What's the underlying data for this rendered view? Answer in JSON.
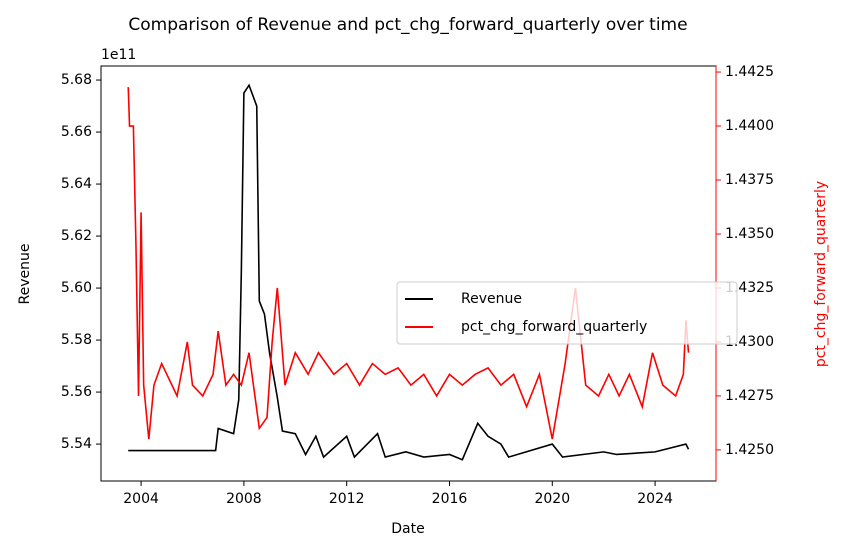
{
  "chart_data": {
    "type": "line",
    "title": "Comparison of Revenue and pct_chg_forward_quarterly over time",
    "xlabel": "Date",
    "ylabel": "Revenue",
    "y2label": "pct_chg_forward_quarterly",
    "y_offset_label": "1e11",
    "xlim": [
      2002.44,
      2026.37
    ],
    "xticks": [
      2004,
      2008,
      2012,
      2016,
      2020,
      2024
    ],
    "ylim": [
      552580000000.0,
      568540000000.0
    ],
    "yticks": [
      {
        "value": 554000000000.0,
        "label": "5.54"
      },
      {
        "value": 556000000000.0,
        "label": "5.56"
      },
      {
        "value": 558000000000.0,
        "label": "5.58"
      },
      {
        "value": 560000000000.0,
        "label": "5.60"
      },
      {
        "value": 562000000000.0,
        "label": "5.62"
      },
      {
        "value": 564000000000.0,
        "label": "5.64"
      },
      {
        "value": 566000000000.0,
        "label": "5.66"
      },
      {
        "value": 568000000000.0,
        "label": "5.68"
      }
    ],
    "y2lim": [
      1.42356,
      1.44278
    ],
    "y2ticks": [
      {
        "value": 1.425,
        "label": "1.4250"
      },
      {
        "value": 1.4275,
        "label": "1.4275"
      },
      {
        "value": 1.43,
        "label": "1.4300"
      },
      {
        "value": 1.4325,
        "label": "1.4325"
      },
      {
        "value": 1.435,
        "label": "1.4350"
      },
      {
        "value": 1.4375,
        "label": "1.4375"
      },
      {
        "value": 1.44,
        "label": "1.4400"
      },
      {
        "value": 1.4425,
        "label": "1.4425"
      }
    ],
    "legend": "center right",
    "series": [
      {
        "name": "Revenue",
        "color": "#000000",
        "axis": "y",
        "x": [
          2003.5,
          2006.9,
          2007.0,
          2007.6,
          2007.8,
          2007.9,
          2008.0,
          2008.2,
          2008.5,
          2008.6,
          2008.8,
          2009.0,
          2009.3,
          2009.5,
          2010.0,
          2010.4,
          2010.8,
          2011.1,
          2012.0,
          2012.3,
          2013.2,
          2013.5,
          2014.3,
          2015.0,
          2016.0,
          2016.5,
          2017.1,
          2017.5,
          2018.0,
          2018.3,
          2020.0,
          2020.4,
          2022.0,
          2022.5,
          2024.0,
          2025.2,
          2025.3
        ],
        "values": [
          553750000000.0,
          553750000000.0,
          554600000000.0,
          554400000000.0,
          555700000000.0,
          560600000000.0,
          567500000000.0,
          567800000000.0,
          567000000000.0,
          559500000000.0,
          559000000000.0,
          557500000000.0,
          555800000000.0,
          554500000000.0,
          554400000000.0,
          553600000000.0,
          554300000000.0,
          553500000000.0,
          554300000000.0,
          553500000000.0,
          554400000000.0,
          553500000000.0,
          553700000000.0,
          553500000000.0,
          553600000000.0,
          553400000000.0,
          554800000000.0,
          554300000000.0,
          554000000000.0,
          553500000000.0,
          554000000000.0,
          553500000000.0,
          553700000000.0,
          553600000000.0,
          553700000000.0,
          554000000000.0,
          553800000000.0
        ]
      },
      {
        "name": "pct_chg_forward_quarterly",
        "color": "#ff0000",
        "axis": "y2",
        "x": [
          2003.5,
          2003.55,
          2003.7,
          2003.8,
          2003.9,
          2004.0,
          2004.1,
          2004.3,
          2004.5,
          2004.8,
          2005.0,
          2005.4,
          2005.8,
          2006.0,
          2006.4,
          2006.8,
          2007.0,
          2007.3,
          2007.6,
          2007.9,
          2008.2,
          2008.6,
          2008.9,
          2009.1,
          2009.3,
          2009.6,
          2010.0,
          2010.5,
          2010.9,
          2011.5,
          2012.0,
          2012.5,
          2013.0,
          2013.5,
          2014.0,
          2014.5,
          2015.0,
          2015.5,
          2016.0,
          2016.5,
          2017.0,
          2017.5,
          2018.0,
          2018.5,
          2019.0,
          2019.5,
          2020.0,
          2020.5,
          2020.9,
          2021.3,
          2021.8,
          2022.2,
          2022.6,
          2023.0,
          2023.5,
          2023.9,
          2024.3,
          2024.8,
          2025.1,
          2025.2,
          2025.3
        ],
        "values": [
          1.4418,
          1.44,
          1.44,
          1.4345,
          1.4275,
          1.436,
          1.428,
          1.4255,
          1.428,
          1.429,
          1.4285,
          1.4275,
          1.43,
          1.428,
          1.4275,
          1.4285,
          1.4305,
          1.428,
          1.4285,
          1.428,
          1.4295,
          1.426,
          1.4265,
          1.43,
          1.4325,
          1.428,
          1.4295,
          1.4285,
          1.4295,
          1.4285,
          1.429,
          1.428,
          1.429,
          1.4285,
          1.4288,
          1.428,
          1.4285,
          1.4275,
          1.4285,
          1.428,
          1.4285,
          1.4288,
          1.428,
          1.4285,
          1.427,
          1.4285,
          1.4255,
          1.429,
          1.4325,
          1.428,
          1.4275,
          1.4285,
          1.4275,
          1.4285,
          1.427,
          1.4295,
          1.428,
          1.4275,
          1.4285,
          1.431,
          1.4295
        ]
      }
    ]
  }
}
